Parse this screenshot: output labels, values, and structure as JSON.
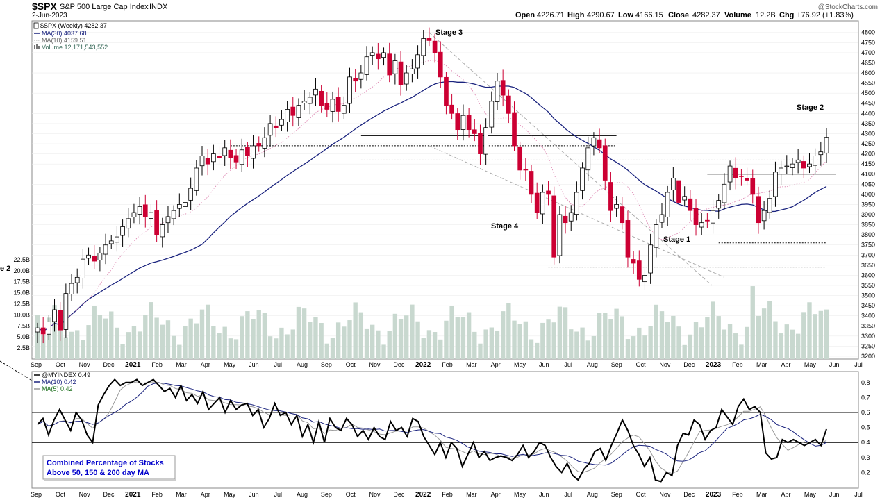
{
  "header": {
    "symbol": "$SPX",
    "name": "S&P 500 Large Cap Index",
    "exchange": "INDX",
    "date": "2-Jun-2023",
    "watermark": "@StockCharts.com",
    "quote": {
      "open_label": "Open",
      "open": "4226.71",
      "high_label": "High",
      "high": "4290.67",
      "low_label": "Low",
      "low": "4166.15",
      "close_label": "Close",
      "close": "4282.37",
      "volume_label": "Volume",
      "volume": "12.2B",
      "chg_label": "Chg",
      "chg": "+76.92 (+1.83%)"
    }
  },
  "colors": {
    "up": "#000000",
    "down": "#cc0033",
    "ma30": "#1a237e",
    "ma10": "#aaaaaa",
    "volume": "#c8d8cf",
    "index": "#000000",
    "index_ma10": "#1a237e",
    "index_ma5": "#999999",
    "box_text": "#0000cc"
  },
  "legend_main": [
    {
      "label": "$SPX (Weekly) 4282.37",
      "icon": "candle-icon"
    },
    {
      "label": "MA(30) 4037.68",
      "icon": "line-icon"
    },
    {
      "label": "MA(10) 4159.51",
      "icon": "dotted-line-icon"
    },
    {
      "label": "Volume 12,171,543,552",
      "icon": "volume-bars-icon"
    }
  ],
  "legend_lower": [
    {
      "label": "@MYINDEX 0.49"
    },
    {
      "label": "MA(10) 0.42"
    },
    {
      "label": "MA(5) 0.42"
    }
  ],
  "annotations": [
    "Stage 3",
    "Stage 4",
    "Stage 1",
    "Stage 2",
    "e 2"
  ],
  "info_box": [
    "Combined Percentage of Stocks",
    "Above 50, 150 & 200 day MA"
  ],
  "chart_data": [
    {
      "type": "candlestick",
      "title": "$SPX S&P 500 Large Cap Index (Weekly)",
      "x_labels": [
        "Sep",
        "Oct",
        "Nov",
        "Dec",
        "2021",
        "Feb",
        "Mar",
        "Apr",
        "May",
        "Jun",
        "Jul",
        "Aug",
        "Sep",
        "Oct",
        "Nov",
        "Dec",
        "2022",
        "Feb",
        "Mar",
        "Apr",
        "May",
        "Jun",
        "Jul",
        "Aug",
        "Sep",
        "Oct",
        "Nov",
        "Dec",
        "2023",
        "Feb",
        "Mar",
        "Apr",
        "May",
        "Jun",
        "Jul"
      ],
      "y_ticks": [
        3200,
        3250,
        3300,
        3350,
        3400,
        3450,
        3500,
        3550,
        3600,
        3650,
        3700,
        3750,
        3800,
        3850,
        3900,
        3950,
        4000,
        4050,
        4100,
        4150,
        4200,
        4250,
        4300,
        4350,
        4400,
        4450,
        4500,
        4550,
        4600,
        4650,
        4700,
        4750,
        4800
      ],
      "ylim": [
        3200,
        4830
      ],
      "volume_ticks": [
        "2.5B",
        "5.0B",
        "7.5B",
        "10.0B",
        "12.5B",
        "15.0B",
        "17.5B",
        "20.0B",
        "22.5B"
      ],
      "volume_ylim": [
        0,
        25
      ],
      "series_close": [
        3340,
        3310,
        3370,
        3430,
        3330,
        3510,
        3560,
        3590,
        3680,
        3700,
        3670,
        3710,
        3750,
        3770,
        3790,
        3840,
        3880,
        3910,
        3940,
        3890,
        3910,
        3800,
        3850,
        3890,
        3920,
        3950,
        3960,
        4030,
        4130,
        4190,
        4150,
        4200,
        4180,
        4230,
        4180,
        4160,
        4220,
        4190,
        4240,
        4240,
        4280,
        4350,
        4330,
        4370,
        4420,
        4390,
        4440,
        4460,
        4480,
        4520,
        4440,
        4420,
        4470,
        4410,
        4440,
        4580,
        4560,
        4600,
        4680,
        4700,
        4670,
        4700,
        4590,
        4660,
        4540,
        4600,
        4620,
        4690,
        4770,
        4760,
        4700,
        4580,
        4440,
        4400,
        4320,
        4390,
        4320,
        4300,
        4200,
        4330,
        4460,
        4560,
        4490,
        4400,
        4240,
        4120,
        4120,
        4000,
        3910,
        4010,
        4000,
        3690,
        3900,
        3860,
        3910,
        4010,
        4130,
        4230,
        4280,
        4230,
        4070,
        3920,
        3950,
        3860,
        3690,
        3660,
        3580,
        3600,
        3750,
        3850,
        3900,
        4010,
        4080,
        3960,
        3990,
        3920,
        3850,
        3860,
        3870,
        3920,
        3970,
        4050,
        4140,
        4080,
        4090,
        4070,
        4000,
        3860,
        3920,
        3980,
        4110,
        4130,
        4140,
        4150,
        4170,
        4130,
        4150,
        4190,
        4210,
        4282
      ],
      "ma30_range": [
        3240,
        4530
      ],
      "ma30_last": 4037.68,
      "ma10_last": 4159.51,
      "horizontal_levels": [
        4290,
        4240,
        4100,
        3760,
        3640
      ],
      "stage_labels": {
        "Stage 3": "2022-01",
        "Stage 4": "2022-05",
        "Stage 1": "2022-11",
        "Stage 2": "2023-06"
      }
    },
    {
      "type": "line",
      "title": "@MYINDEX",
      "x_labels": [
        "Sep",
        "Oct",
        "Nov",
        "Dec",
        "2021",
        "Feb",
        "Mar",
        "Apr",
        "May",
        "Jun",
        "Jul",
        "Aug",
        "Sep",
        "Oct",
        "Nov",
        "Dec",
        "2022",
        "Feb",
        "Mar",
        "Apr",
        "May",
        "Jun",
        "Jul",
        "Aug",
        "Sep",
        "Oct",
        "Nov",
        "Dec",
        "2023",
        "Feb",
        "Mar",
        "Apr",
        "May",
        "Jun",
        "Jul"
      ],
      "y_ticks": [
        0.2,
        0.3,
        0.4,
        0.5,
        0.6,
        0.7,
        0.8
      ],
      "ylim": [
        0.1,
        0.85
      ],
      "reference_lines": [
        0.6,
        0.4
      ],
      "series": [
        {
          "name": "@MYINDEX",
          "values": [
            0.52,
            0.56,
            0.45,
            0.55,
            0.62,
            0.55,
            0.48,
            0.6,
            0.55,
            0.45,
            0.4,
            0.65,
            0.72,
            0.78,
            0.82,
            0.78,
            0.8,
            0.8,
            0.82,
            0.78,
            0.8,
            0.82,
            0.78,
            0.74,
            0.76,
            0.7,
            0.78,
            0.68,
            0.72,
            0.66,
            0.74,
            0.62,
            0.66,
            0.7,
            0.6,
            0.68,
            0.62,
            0.65,
            0.66,
            0.58,
            0.62,
            0.5,
            0.56,
            0.66,
            0.58,
            0.6,
            0.52,
            0.58,
            0.44,
            0.52,
            0.4,
            0.54,
            0.4,
            0.56,
            0.5,
            0.48,
            0.56,
            0.52,
            0.44,
            0.48,
            0.42,
            0.5,
            0.44,
            0.42,
            0.54,
            0.48,
            0.5,
            0.44,
            0.56,
            0.54,
            0.44,
            0.38,
            0.32,
            0.4,
            0.3,
            0.4,
            0.36,
            0.24,
            0.32,
            0.4,
            0.3,
            0.34,
            0.28,
            0.3,
            0.31,
            0.3,
            0.28,
            0.32,
            0.38,
            0.3,
            0.34,
            0.4,
            0.38,
            0.3,
            0.24,
            0.2,
            0.26,
            0.18,
            0.15,
            0.22,
            0.26,
            0.34,
            0.36,
            0.28,
            0.38,
            0.46,
            0.55,
            0.48,
            0.38,
            0.32,
            0.24,
            0.3,
            0.15,
            0.14,
            0.2,
            0.18,
            0.38,
            0.46,
            0.45,
            0.55,
            0.52,
            0.42,
            0.48,
            0.5,
            0.62,
            0.57,
            0.52,
            0.64,
            0.69,
            0.62,
            0.64,
            0.6,
            0.33,
            0.29,
            0.3,
            0.42,
            0.4,
            0.42,
            0.4,
            0.38,
            0.4,
            0.42,
            0.38,
            0.49
          ]
        },
        {
          "name": "MA(10)",
          "last": 0.42
        },
        {
          "name": "MA(5)",
          "last": 0.42
        }
      ]
    }
  ]
}
